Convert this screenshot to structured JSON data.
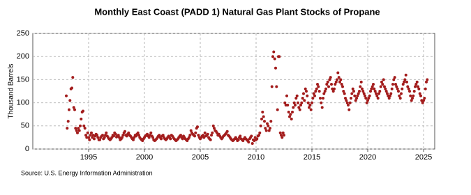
{
  "chart_data": {
    "type": "scatter",
    "title": "Monthly East Coast (PADD 1) Natural Gas Plant Stocks of Propane",
    "y_label": "Thousand Barrels",
    "source": "Source: U.S. Energy Information Administration",
    "color": "#a31d1d",
    "grid": true,
    "xlim": [
      1990,
      2026
    ],
    "xticks": [
      1995,
      2000,
      2005,
      2010,
      2015,
      2020,
      2025
    ],
    "ylim": [
      0,
      250
    ],
    "yticks": [
      0,
      50,
      100,
      150,
      200,
      250
    ],
    "x": [
      1993,
      1993.08,
      1993.17,
      1993.25,
      1993.33,
      1993.42,
      1993.5,
      1993.58,
      1993.67,
      1993.75,
      1993.83,
      1993.92,
      1994,
      1994.08,
      1994.17,
      1994.25,
      1994.33,
      1994.42,
      1994.5,
      1994.58,
      1994.67,
      1994.75,
      1994.83,
      1994.92,
      1995,
      1995.08,
      1995.17,
      1995.25,
      1995.33,
      1995.42,
      1995.5,
      1995.58,
      1995.67,
      1995.75,
      1995.83,
      1995.92,
      1996,
      1996.08,
      1996.17,
      1996.25,
      1996.33,
      1996.42,
      1996.5,
      1996.58,
      1996.67,
      1996.75,
      1996.83,
      1996.92,
      1997,
      1997.08,
      1997.17,
      1997.25,
      1997.33,
      1997.42,
      1997.5,
      1997.58,
      1997.67,
      1997.75,
      1997.83,
      1997.92,
      1998,
      1998.08,
      1998.17,
      1998.25,
      1998.33,
      1998.42,
      1998.5,
      1998.58,
      1998.67,
      1998.75,
      1998.83,
      1998.92,
      1999,
      1999.08,
      1999.17,
      1999.25,
      1999.33,
      1999.42,
      1999.5,
      1999.58,
      1999.67,
      1999.75,
      1999.83,
      1999.92,
      2000,
      2000.08,
      2000.17,
      2000.25,
      2000.33,
      2000.42,
      2000.5,
      2000.58,
      2000.67,
      2000.75,
      2000.83,
      2000.92,
      2001,
      2001.08,
      2001.17,
      2001.25,
      2001.33,
      2001.42,
      2001.5,
      2001.58,
      2001.67,
      2001.75,
      2001.83,
      2001.92,
      2002,
      2002.08,
      2002.17,
      2002.25,
      2002.33,
      2002.42,
      2002.5,
      2002.58,
      2002.67,
      2002.75,
      2002.83,
      2002.92,
      2003,
      2003.08,
      2003.17,
      2003.25,
      2003.33,
      2003.42,
      2003.5,
      2003.58,
      2003.67,
      2003.75,
      2003.83,
      2003.92,
      2004,
      2004.08,
      2004.17,
      2004.25,
      2004.33,
      2004.42,
      2004.5,
      2004.58,
      2004.67,
      2004.75,
      2004.83,
      2004.92,
      2005,
      2005.08,
      2005.17,
      2005.25,
      2005.33,
      2005.42,
      2005.5,
      2005.58,
      2005.67,
      2005.75,
      2005.83,
      2005.92,
      2006,
      2006.08,
      2006.17,
      2006.25,
      2006.33,
      2006.42,
      2006.5,
      2006.58,
      2006.67,
      2006.75,
      2006.83,
      2006.92,
      2007,
      2007.08,
      2007.17,
      2007.25,
      2007.33,
      2007.42,
      2007.5,
      2007.58,
      2007.67,
      2007.75,
      2007.83,
      2007.92,
      2008,
      2008.08,
      2008.17,
      2008.25,
      2008.33,
      2008.42,
      2008.5,
      2008.58,
      2008.67,
      2008.75,
      2008.83,
      2008.92,
      2009,
      2009.08,
      2009.17,
      2009.25,
      2009.33,
      2009.42,
      2009.5,
      2009.58,
      2009.67,
      2009.75,
      2009.83,
      2009.92,
      2010,
      2010.08,
      2010.17,
      2010.25,
      2010.33,
      2010.42,
      2010.5,
      2010.58,
      2010.67,
      2010.75,
      2010.83,
      2010.92,
      2011,
      2011.08,
      2011.17,
      2011.25,
      2011.33,
      2011.42,
      2011.5,
      2011.58,
      2011.67,
      2011.75,
      2011.83,
      2011.92,
      2012,
      2012.08,
      2012.17,
      2012.25,
      2012.33,
      2012.42,
      2012.5,
      2012.58,
      2012.67,
      2012.75,
      2012.83,
      2012.92,
      2013,
      2013.08,
      2013.17,
      2013.25,
      2013.33,
      2013.42,
      2013.5,
      2013.58,
      2013.67,
      2013.75,
      2013.83,
      2013.92,
      2014,
      2014.08,
      2014.17,
      2014.25,
      2014.33,
      2014.42,
      2014.5,
      2014.58,
      2014.67,
      2014.75,
      2014.83,
      2014.92,
      2015,
      2015.08,
      2015.17,
      2015.25,
      2015.33,
      2015.42,
      2015.5,
      2015.58,
      2015.67,
      2015.75,
      2015.83,
      2015.92,
      2016,
      2016.08,
      2016.17,
      2016.25,
      2016.33,
      2016.42,
      2016.5,
      2016.58,
      2016.67,
      2016.75,
      2016.83,
      2016.92,
      2017,
      2017.08,
      2017.17,
      2017.25,
      2017.33,
      2017.42,
      2017.5,
      2017.58,
      2017.67,
      2017.75,
      2017.83,
      2017.92,
      2018,
      2018.08,
      2018.17,
      2018.25,
      2018.33,
      2018.42,
      2018.5,
      2018.58,
      2018.67,
      2018.75,
      2018.83,
      2018.92,
      2019,
      2019.08,
      2019.17,
      2019.25,
      2019.33,
      2019.42,
      2019.5,
      2019.58,
      2019.67,
      2019.75,
      2019.83,
      2019.92,
      2020,
      2020.08,
      2020.17,
      2020.25,
      2020.33,
      2020.42,
      2020.5,
      2020.58,
      2020.67,
      2020.75,
      2020.83,
      2020.92,
      2021,
      2021.08,
      2021.17,
      2021.25,
      2021.33,
      2021.42,
      2021.5,
      2021.58,
      2021.67,
      2021.75,
      2021.83,
      2021.92,
      2022,
      2022.08,
      2022.17,
      2022.25,
      2022.33,
      2022.42,
      2022.5,
      2022.58,
      2022.67,
      2022.75,
      2022.83,
      2022.92,
      2023,
      2023.08,
      2023.17,
      2023.25,
      2023.33,
      2023.42,
      2023.5,
      2023.58,
      2023.67,
      2023.75,
      2023.83,
      2023.92,
      2024,
      2024.08,
      2024.17,
      2024.25,
      2024.33,
      2024.42,
      2024.5,
      2024.58,
      2024.67,
      2024.75,
      2024.83,
      2024.92,
      2025,
      2025.08,
      2025.17,
      2025.25,
      2025.33
    ],
    "values": [
      115,
      45,
      60,
      85,
      105,
      130,
      132,
      155,
      90,
      85,
      45,
      40,
      35,
      45,
      40,
      50,
      65,
      80,
      82,
      50,
      45,
      30,
      25,
      35,
      25,
      20,
      30,
      35,
      25,
      30,
      22,
      28,
      32,
      30,
      25,
      20,
      20,
      25,
      28,
      30,
      22,
      25,
      30,
      35,
      28,
      25,
      22,
      20,
      22,
      25,
      30,
      28,
      35,
      32,
      26,
      28,
      30,
      25,
      20,
      22,
      25,
      30,
      35,
      38,
      30,
      28,
      32,
      35,
      30,
      28,
      25,
      22,
      20,
      25,
      30,
      28,
      32,
      35,
      30,
      25,
      22,
      20,
      18,
      22,
      25,
      28,
      30,
      32,
      28,
      25,
      30,
      35,
      28,
      25,
      20,
      18,
      20,
      22,
      25,
      28,
      30,
      25,
      22,
      28,
      30,
      25,
      22,
      20,
      22,
      25,
      28,
      25,
      22,
      30,
      28,
      25,
      22,
      20,
      18,
      20,
      22,
      25,
      28,
      30,
      25,
      22,
      28,
      25,
      22,
      20,
      18,
      22,
      25,
      30,
      40,
      35,
      32,
      30,
      28,
      35,
      45,
      48,
      30,
      25,
      22,
      25,
      28,
      30,
      25,
      35,
      28,
      30,
      32,
      25,
      22,
      20,
      30,
      35,
      50,
      45,
      40,
      38,
      35,
      30,
      32,
      28,
      25,
      22,
      25,
      28,
      30,
      32,
      35,
      38,
      30,
      28,
      25,
      22,
      20,
      18,
      20,
      22,
      25,
      22,
      18,
      20,
      25,
      28,
      22,
      20,
      18,
      22,
      25,
      22,
      20,
      18,
      15,
      22,
      25,
      28,
      12,
      20,
      18,
      25,
      20,
      22,
      28,
      30,
      35,
      50,
      65,
      80,
      70,
      60,
      45,
      40,
      55,
      50,
      40,
      45,
      60,
      135,
      200,
      210,
      195,
      175,
      135,
      85,
      200,
      200,
      35,
      30,
      25,
      35,
      30,
      100,
      95,
      115,
      95,
      80,
      70,
      75,
      65,
      80,
      90,
      100,
      95,
      110,
      115,
      100,
      90,
      85,
      95,
      100,
      110,
      120,
      105,
      130,
      125,
      115,
      100,
      90,
      95,
      85,
      100,
      110,
      120,
      115,
      125,
      130,
      140,
      135,
      125,
      110,
      100,
      90,
      110,
      120,
      125,
      130,
      140,
      145,
      135,
      150,
      155,
      140,
      130,
      125,
      130,
      140,
      145,
      150,
      165,
      155,
      145,
      150,
      140,
      135,
      125,
      120,
      110,
      105,
      100,
      95,
      85,
      100,
      110,
      120,
      130,
      125,
      115,
      105,
      110,
      115,
      120,
      125,
      135,
      145,
      130,
      125,
      120,
      115,
      110,
      100,
      105,
      110,
      115,
      125,
      130,
      135,
      140,
      130,
      125,
      120,
      115,
      110,
      120,
      125,
      135,
      145,
      140,
      150,
      135,
      130,
      125,
      120,
      115,
      110,
      115,
      120,
      130,
      140,
      150,
      155,
      140,
      135,
      130,
      125,
      115,
      110,
      120,
      130,
      140,
      145,
      150,
      160,
      145,
      135,
      130,
      125,
      115,
      105,
      110,
      115,
      125,
      135,
      140,
      145,
      135,
      130,
      120,
      115,
      105,
      100,
      105,
      110,
      130,
      145,
      150
    ]
  }
}
